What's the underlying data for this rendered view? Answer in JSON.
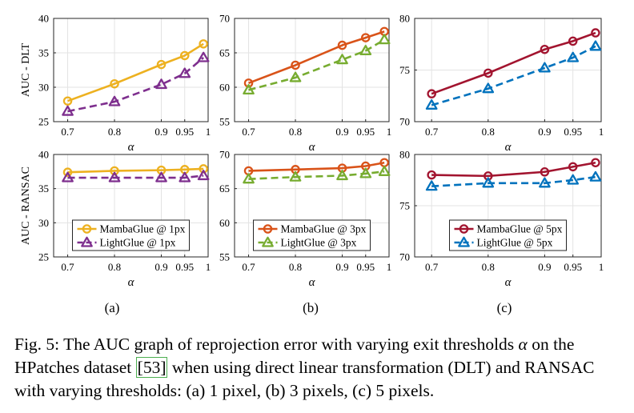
{
  "chart_data": [
    {
      "type": "line",
      "panel": "a",
      "metric": "DLT",
      "ylabel": "AUC - DLT",
      "xlabel": "α",
      "x": [
        0.7,
        0.8,
        0.9,
        0.95,
        0.99
      ],
      "xticks": [
        0.7,
        0.8,
        0.9,
        0.95,
        1
      ],
      "xtick_labels": [
        "0.7",
        "0.8",
        "0.9",
        "0.95",
        "1"
      ],
      "xlim": [
        0.67,
        1.0
      ],
      "ylim": [
        25,
        40
      ],
      "yticks": [
        25,
        30,
        35,
        40
      ],
      "series": [
        {
          "name": "MambaGlue @ 1px",
          "values": [
            28.0,
            30.5,
            33.3,
            34.6,
            36.3
          ],
          "color": "#EDB120",
          "marker": "circle",
          "dash": false
        },
        {
          "name": "LightGlue @ 1px",
          "values": [
            26.5,
            27.9,
            30.4,
            32.0,
            34.3
          ],
          "color": "#7E2F8E",
          "marker": "triangle",
          "dash": true
        }
      ]
    },
    {
      "type": "line",
      "panel": "b",
      "metric": "DLT",
      "xlabel": "α",
      "x": [
        0.7,
        0.8,
        0.9,
        0.95,
        0.99
      ],
      "xticks": [
        0.7,
        0.8,
        0.9,
        0.95,
        1
      ],
      "xtick_labels": [
        "0.7",
        "0.8",
        "0.9",
        "0.95",
        "1"
      ],
      "xlim": [
        0.67,
        1.0
      ],
      "ylim": [
        55,
        70
      ],
      "yticks": [
        55,
        60,
        65,
        70
      ],
      "series": [
        {
          "name": "MambaGlue @ 3px",
          "values": [
            60.6,
            63.2,
            66.1,
            67.2,
            68.1
          ],
          "color": "#D95319",
          "marker": "circle",
          "dash": false
        },
        {
          "name": "LightGlue @ 3px",
          "values": [
            59.6,
            61.4,
            64.0,
            65.3,
            66.9
          ],
          "color": "#77AC30",
          "marker": "triangle",
          "dash": true
        }
      ]
    },
    {
      "type": "line",
      "panel": "c",
      "metric": "DLT",
      "xlabel": "α",
      "x": [
        0.7,
        0.8,
        0.9,
        0.95,
        0.99
      ],
      "xticks": [
        0.7,
        0.8,
        0.9,
        0.95,
        1
      ],
      "xtick_labels": [
        "0.7",
        "0.8",
        "0.9",
        "0.95",
        "1"
      ],
      "xlim": [
        0.67,
        1.0
      ],
      "ylim": [
        70,
        80
      ],
      "yticks": [
        70,
        75,
        80
      ],
      "series": [
        {
          "name": "MambaGlue @ 5px",
          "values": [
            72.7,
            74.7,
            77.0,
            77.8,
            78.6
          ],
          "color": "#A2142F",
          "marker": "circle",
          "dash": false
        },
        {
          "name": "LightGlue @ 5px",
          "values": [
            71.6,
            73.2,
            75.2,
            76.2,
            77.3
          ],
          "color": "#0072BD",
          "marker": "triangle",
          "dash": true
        }
      ]
    },
    {
      "type": "line",
      "panel": "a",
      "metric": "RANSAC",
      "ylabel": "AUC - RANSAC",
      "xlabel": "α",
      "x": [
        0.7,
        0.8,
        0.9,
        0.95,
        0.99
      ],
      "xticks": [
        0.7,
        0.8,
        0.9,
        0.95,
        1
      ],
      "xtick_labels": [
        "0.7",
        "0.8",
        "0.9",
        "0.95",
        "1"
      ],
      "xlim": [
        0.67,
        1.0
      ],
      "ylim": [
        25,
        40
      ],
      "yticks": [
        25,
        30,
        35,
        40
      ],
      "legend": "bottom-center",
      "series": [
        {
          "name": "MambaGlue @ 1px",
          "values": [
            37.4,
            37.6,
            37.7,
            37.8,
            37.9
          ],
          "color": "#EDB120",
          "marker": "circle",
          "dash": false
        },
        {
          "name": "LightGlue @ 1px",
          "values": [
            36.6,
            36.6,
            36.6,
            36.6,
            36.9
          ],
          "color": "#7E2F8E",
          "marker": "triangle",
          "dash": true
        }
      ]
    },
    {
      "type": "line",
      "panel": "b",
      "metric": "RANSAC",
      "xlabel": "α",
      "x": [
        0.7,
        0.8,
        0.9,
        0.95,
        0.99
      ],
      "xticks": [
        0.7,
        0.8,
        0.9,
        0.95,
        1
      ],
      "xtick_labels": [
        "0.7",
        "0.8",
        "0.9",
        "0.95",
        "1"
      ],
      "xlim": [
        0.67,
        1.0
      ],
      "ylim": [
        55,
        70
      ],
      "yticks": [
        55,
        60,
        65,
        70
      ],
      "legend": "bottom-center",
      "series": [
        {
          "name": "MambaGlue @ 3px",
          "values": [
            67.6,
            67.8,
            68.0,
            68.3,
            68.8
          ],
          "color": "#D95319",
          "marker": "circle",
          "dash": false
        },
        {
          "name": "LightGlue @ 3px",
          "values": [
            66.4,
            66.7,
            66.9,
            67.2,
            67.5
          ],
          "color": "#77AC30",
          "marker": "triangle",
          "dash": true
        }
      ]
    },
    {
      "type": "line",
      "panel": "c",
      "metric": "RANSAC",
      "xlabel": "α",
      "x": [
        0.7,
        0.8,
        0.9,
        0.95,
        0.99
      ],
      "xticks": [
        0.7,
        0.8,
        0.9,
        0.95,
        1
      ],
      "xtick_labels": [
        "0.7",
        "0.8",
        "0.9",
        "0.95",
        "1"
      ],
      "xlim": [
        0.67,
        1.0
      ],
      "ylim": [
        70,
        80
      ],
      "yticks": [
        70,
        75,
        80
      ],
      "legend": "bottom-center",
      "series": [
        {
          "name": "MambaGlue @ 5px",
          "values": [
            78.0,
            77.9,
            78.3,
            78.8,
            79.2
          ],
          "color": "#A2142F",
          "marker": "circle",
          "dash": false
        },
        {
          "name": "LightGlue @ 5px",
          "values": [
            76.9,
            77.2,
            77.2,
            77.5,
            77.8
          ],
          "color": "#0072BD",
          "marker": "triangle",
          "dash": true
        }
      ]
    }
  ],
  "subfigure_labels": [
    "(a)",
    "(b)",
    "(c)"
  ],
  "caption": {
    "prefix": "Fig. 5: The AUC graph of reprojection error with varying exit thresholds ",
    "alpha": "α",
    "middle": " on the HPatches dataset ",
    "citation": "[53]",
    "suffix": " when using direct linear transformation (DLT) and RANSAC with varying thresholds: (a) 1 pixel, (b) 3 pixels, (c) 5 pixels."
  }
}
